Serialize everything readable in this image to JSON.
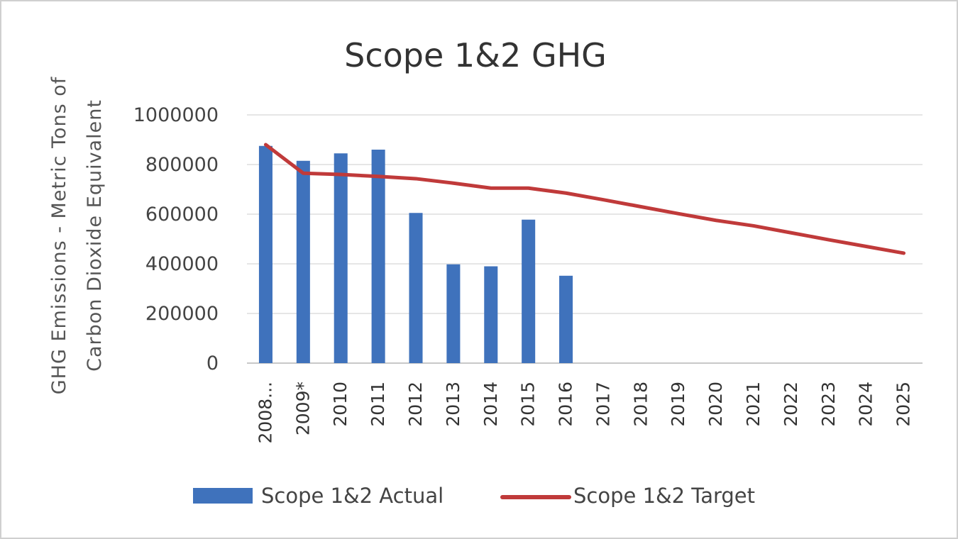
{
  "chart_data": {
    "type": "bar",
    "title": "Scope 1&2 GHG",
    "ylabel_line1": "GHG Emissions - Metric Tons of",
    "ylabel_line2": "Carbon Dioxide Equivalent",
    "xlabel": "",
    "ylim": [
      0,
      1000000
    ],
    "yticks": [
      0,
      200000,
      400000,
      600000,
      800000,
      1000000
    ],
    "ytick_labels": [
      "0",
      "200000",
      "400000",
      "600000",
      "800000",
      "1000000"
    ],
    "grid": true,
    "legend_position": "bottom",
    "categories": [
      "2008...",
      "2009*",
      "2010",
      "2011",
      "2012",
      "2013",
      "2014",
      "2015",
      "2016",
      "2017",
      "2018",
      "2019",
      "2020",
      "2021",
      "2022",
      "2023",
      "2024",
      "2025"
    ],
    "series": [
      {
        "name": "Scope 1&2 Actual",
        "kind": "bar",
        "color": "#3f72bc",
        "values": [
          875000,
          815000,
          845000,
          860000,
          605000,
          398000,
          390000,
          578000,
          352000,
          null,
          null,
          null,
          null,
          null,
          null,
          null,
          null,
          null
        ]
      },
      {
        "name": "Scope 1&2 Target",
        "kind": "line",
        "color": "#c03a3a",
        "values": [
          880000,
          765000,
          760000,
          752000,
          743000,
          725000,
          705000,
          705000,
          685000,
          658000,
          630000,
          602000,
          575000,
          553000,
          525000,
          497000,
          470000,
          443000
        ]
      }
    ]
  }
}
